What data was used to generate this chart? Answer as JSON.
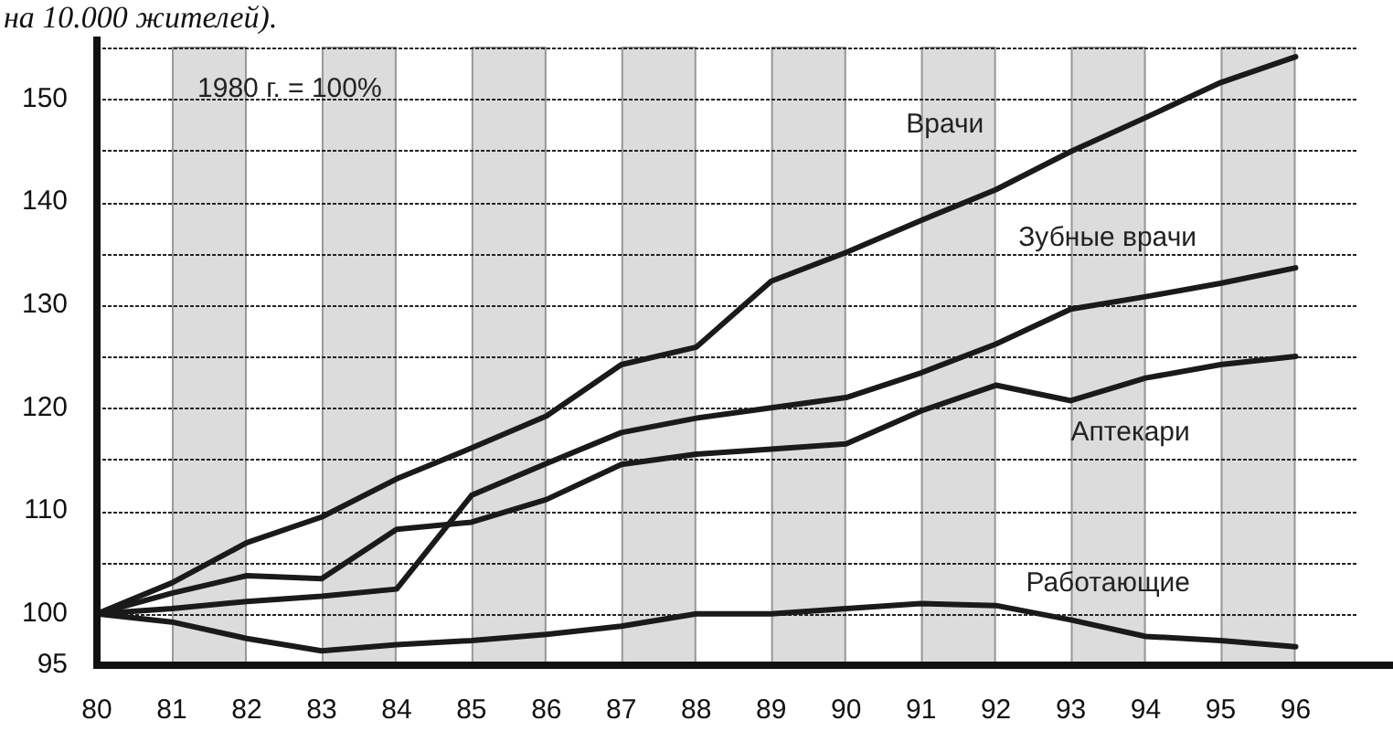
{
  "chart_data": {
    "type": "line",
    "title": "на 10.000 жителей).",
    "x": [
      80,
      81,
      82,
      83,
      84,
      85,
      86,
      87,
      88,
      89,
      90,
      91,
      92,
      93,
      94,
      95,
      96
    ],
    "xlim": [
      80,
      97.3
    ],
    "xticks": [
      80,
      81,
      82,
      83,
      84,
      85,
      86,
      87,
      88,
      89,
      90,
      91,
      92,
      93,
      94,
      95,
      96
    ],
    "ylim": [
      95,
      155
    ],
    "yticks": [
      95,
      100,
      {
        "value": 105,
        "label": null
      },
      110,
      {
        "value": 115,
        "label": null
      },
      120,
      {
        "value": 125,
        "label": null
      },
      130,
      {
        "value": 135,
        "label": null
      },
      140,
      {
        "value": 145,
        "label": null
      },
      150,
      {
        "value": 155,
        "label": null
      }
    ],
    "grid": "y",
    "legend": false,
    "marker": "none",
    "line_style": "solid",
    "annotations": [
      "1980 г. = 100%"
    ],
    "bands": [
      {
        "axis": "x",
        "from": 81,
        "to": 82,
        "color": "#dcdcdc"
      },
      {
        "axis": "x",
        "from": 83,
        "to": 84,
        "color": "#dcdcdc"
      },
      {
        "axis": "x",
        "from": 85,
        "to": 86,
        "color": "#dcdcdc"
      },
      {
        "axis": "x",
        "from": 87,
        "to": 88,
        "color": "#dcdcdc"
      },
      {
        "axis": "x",
        "from": 89,
        "to": 90,
        "color": "#dcdcdc"
      },
      {
        "axis": "x",
        "from": 91,
        "to": 92,
        "color": "#dcdcdc"
      },
      {
        "axis": "x",
        "from": 93,
        "to": 94,
        "color": "#dcdcdc"
      },
      {
        "axis": "x",
        "from": 95,
        "to": 96,
        "color": "#dcdcdc"
      }
    ],
    "series": [
      {
        "name": "Врачи",
        "color": "#1a1a1a",
        "values": [
          100,
          103,
          106.9,
          109.4,
          113.1,
          116.1,
          119.2,
          124.2,
          125.9,
          132.3,
          135.1,
          138.2,
          141.2,
          144.9,
          148.2,
          151.6,
          154.1
        ]
      },
      {
        "name": "Зубные врачи",
        "color": "#1a1a1a",
        "values": [
          100,
          100.5,
          101.2,
          101.7,
          102.4,
          111.5,
          114.6,
          117.6,
          119,
          120,
          121,
          123.4,
          126.2,
          129.6,
          130.8,
          132.1,
          133.6
        ]
      },
      {
        "name": "Аптекари",
        "color": "#1a1a1a",
        "values": [
          100,
          102,
          103.7,
          103.4,
          108.2,
          108.9,
          111.1,
          114.5,
          115.5,
          116,
          116.5,
          119.7,
          122.2,
          120.7,
          122.9,
          124.2,
          125
        ]
      },
      {
        "name": "Работающие",
        "color": "#1a1a1a",
        "values": [
          100,
          99.2,
          97.6,
          96.4,
          97,
          97.4,
          98,
          98.8,
          100,
          100,
          100.5,
          101,
          100.8,
          99.4,
          97.8,
          97.4,
          96.8
        ]
      }
    ]
  }
}
